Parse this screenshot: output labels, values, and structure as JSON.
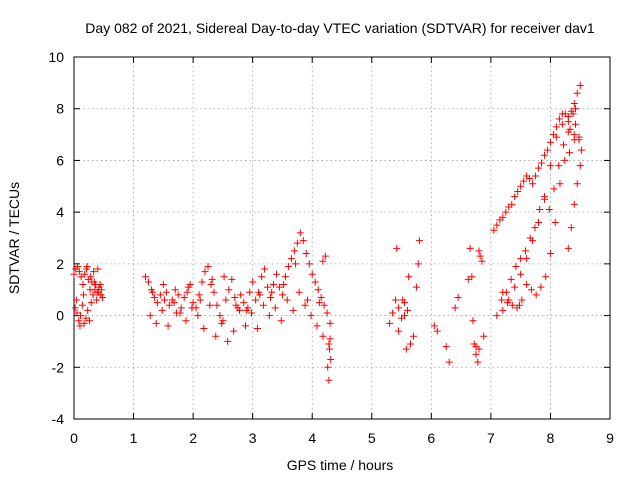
{
  "chart_data": {
    "type": "scatter",
    "title": "Day 082 of 2021, Sidereal Day-to-day VTEC variation (SDTVAR) for receiver dav1",
    "xlabel": "GPS time / hours",
    "ylabel": "SDTVAR / TECUs",
    "xlim": [
      0,
      9
    ],
    "ylim": [
      -4,
      10
    ],
    "xticks": [
      "0",
      "1",
      "2",
      "3",
      "4",
      "5",
      "6",
      "7",
      "8",
      "9"
    ],
    "yticks": [
      "-4",
      "-2",
      "0",
      "2",
      "4",
      "6",
      "8",
      "10"
    ],
    "grid": true,
    "marker": "+",
    "color": "#ff0000",
    "series": [
      {
        "name": "SDTVAR",
        "x": [
          0.0,
          0.03,
          0.06,
          0.09,
          0.12,
          0.15,
          0.18,
          0.21,
          0.24,
          0.27,
          0.3,
          0.33,
          0.36,
          0.39,
          0.42,
          0.45,
          0.48,
          0.02,
          0.05,
          0.08,
          0.11,
          0.14,
          0.17,
          0.2,
          0.23,
          0.26,
          0.29,
          0.32,
          0.35,
          0.38,
          0.41,
          0.44,
          0.04,
          0.1,
          0.16,
          0.22,
          0.28,
          0.34,
          0.4,
          0.46,
          1.2,
          1.25,
          1.3,
          1.35,
          1.4,
          1.45,
          1.5,
          1.55,
          1.6,
          1.65,
          1.7,
          1.75,
          1.8,
          1.85,
          1.9,
          1.95,
          2.0,
          2.05,
          2.1,
          2.15,
          2.2,
          2.25,
          2.3,
          2.35,
          2.4,
          2.45,
          2.5,
          2.55,
          2.6,
          2.65,
          2.7,
          2.75,
          2.8,
          2.85,
          2.9,
          2.95,
          3.0,
          3.05,
          3.1,
          3.15,
          3.2,
          3.25,
          3.3,
          3.35,
          3.4,
          3.45,
          3.5,
          3.55,
          3.6,
          3.65,
          3.7,
          3.75,
          3.8,
          3.85,
          3.9,
          3.95,
          4.0,
          4.05,
          4.1,
          4.15,
          4.2,
          4.25,
          4.3,
          1.28,
          1.38,
          1.48,
          1.58,
          1.68,
          1.78,
          1.88,
          1.98,
          2.08,
          2.18,
          2.28,
          2.38,
          2.48,
          2.58,
          2.68,
          2.78,
          2.88,
          2.98,
          3.08,
          3.18,
          3.28,
          3.38,
          3.48,
          3.58,
          3.68,
          3.78,
          3.88,
          3.98,
          4.08,
          4.18,
          4.28,
          1.32,
          1.52,
          1.72,
          1.92,
          2.12,
          2.32,
          2.52,
          2.72,
          2.92,
          3.12,
          3.32,
          3.52,
          3.72,
          3.92,
          4.12,
          4.29,
          4.3,
          4.31,
          4.26,
          4.22,
          4.18,
          4.28,
          5.3,
          5.35,
          5.4,
          5.45,
          5.5,
          5.55,
          5.6,
          5.65,
          5.7,
          5.75,
          5.8,
          5.42,
          5.52,
          5.58,
          5.62,
          5.78,
          5.45,
          5.55,
          6.05,
          6.1,
          6.25,
          6.3,
          6.4,
          6.45,
          6.62,
          6.65,
          6.68,
          6.72,
          6.75,
          6.78,
          6.8,
          6.82,
          6.85,
          6.7,
          6.8,
          6.88,
          6.75,
          7.05,
          7.1,
          7.15,
          7.2,
          7.25,
          7.3,
          7.35,
          7.4,
          7.45,
          7.5,
          7.55,
          7.6,
          7.65,
          7.7,
          7.75,
          7.8,
          7.85,
          7.9,
          7.95,
          8.0,
          8.05,
          8.1,
          8.15,
          8.2,
          8.25,
          8.3,
          8.35,
          8.4,
          8.45,
          8.5,
          7.2,
          7.28,
          7.36,
          7.44,
          7.52,
          7.6,
          7.68,
          7.76,
          7.84,
          7.92,
          8.0,
          8.08,
          8.16,
          8.24,
          8.32,
          8.4,
          7.18,
          7.26,
          7.34,
          7.42,
          7.5,
          7.58,
          7.66,
          7.74,
          7.82,
          7.9,
          7.98,
          8.06,
          8.14,
          8.22,
          8.3,
          7.1,
          7.2,
          7.3,
          7.4,
          7.5,
          7.6,
          7.7,
          7.8,
          7.9,
          8.0,
          8.1,
          8.2,
          8.3,
          8.4,
          8.48,
          8.3,
          8.35,
          8.4,
          8.45,
          8.5,
          8.52,
          8.48,
          8.42,
          8.38,
          8.33,
          7.48,
          8.42
        ],
        "y": [
          1.6,
          1.8,
          1.9,
          1.7,
          1.5,
          1.2,
          1.6,
          1.8,
          1.4,
          1.0,
          1.3,
          1.7,
          1.2,
          0.9,
          1.1,
          0.8,
          0.7,
          0.3,
          0.1,
          -0.2,
          0.0,
          0.4,
          -0.3,
          -0.1,
          0.2,
          -0.2,
          0.5,
          0.8,
          1.0,
          0.6,
          0.9,
          1.2,
          0.6,
          -0.4,
          0.8,
          1.9,
          1.5,
          1.3,
          1.8,
          1.0,
          1.5,
          1.3,
          1.0,
          0.7,
          0.5,
          0.8,
          1.2,
          0.9,
          0.4,
          0.6,
          1.0,
          0.8,
          0.3,
          0.7,
          0.9,
          1.2,
          0.5,
          0.3,
          0.8,
          1.3,
          1.7,
          1.9,
          1.2,
          0.9,
          0.4,
          0.0,
          -0.2,
          0.6,
          1.0,
          1.4,
          0.7,
          0.3,
          0.8,
          0.5,
          0.2,
          0.9,
          1.3,
          0.6,
          0.9,
          1.5,
          1.8,
          1.1,
          0.7,
          1.2,
          1.6,
          1.1,
          0.8,
          1.5,
          1.9,
          2.2,
          2.5,
          2.8,
          3.2,
          2.9,
          2.4,
          2.0,
          1.6,
          1.3,
          1.0,
          0.7,
          0.4,
          0.1,
          -0.3,
          0.0,
          -0.3,
          0.2,
          -0.4,
          0.5,
          0.1,
          -0.2,
          0.3,
          0.0,
          -0.5,
          0.4,
          -0.8,
          -0.3,
          -1.0,
          -0.6,
          0.2,
          -0.4,
          0.1,
          -0.5,
          0.4,
          0.0,
          0.3,
          -0.2,
          0.6,
          0.2,
          0.9,
          0.4,
          0.0,
          -0.4,
          -0.8,
          -1.1,
          0.9,
          0.6,
          0.1,
          1.1,
          0.6,
          1.4,
          1.5,
          0.4,
          0.3,
          0.8,
          0.9,
          1.2,
          2.0,
          0.6,
          0.5,
          -1.3,
          -0.9,
          -1.7,
          -2.0,
          2.3,
          2.1,
          -2.5,
          -0.3,
          0.1,
          0.6,
          0.3,
          -0.1,
          0.5,
          0.2,
          -1.1,
          -0.8,
          1.1,
          2.9,
          2.6,
          0.6,
          -1.3,
          1.5,
          2.0,
          -0.6,
          0.0,
          -0.4,
          -0.6,
          -1.2,
          -1.8,
          0.3,
          0.7,
          1.4,
          2.6,
          1.5,
          -1.1,
          -1.5,
          -1.8,
          2.5,
          2.3,
          2.1,
          -0.2,
          -1.3,
          -0.8,
          -1.2,
          3.3,
          3.5,
          3.7,
          3.8,
          4.0,
          4.2,
          4.3,
          4.6,
          4.8,
          5.0,
          5.2,
          5.4,
          5.3,
          5.1,
          5.4,
          5.7,
          5.9,
          6.2,
          6.4,
          6.7,
          7.0,
          7.3,
          7.6,
          7.8,
          7.8,
          7.7,
          7.9,
          8.2,
          8.6,
          8.9,
          0.9,
          0.5,
          0.4,
          0.3,
          0.6,
          1.2,
          1.0,
          0.8,
          1.1,
          1.5,
          2.4,
          3.6,
          5.1,
          6.0,
          6.3,
          6.8,
          0.6,
          0.9,
          1.4,
          1.9,
          2.2,
          2.5,
          3.0,
          3.4,
          4.1,
          4.6,
          4.1,
          4.9,
          5.8,
          6.6,
          7.1,
          0.0,
          0.2,
          0.6,
          1.1,
          1.6,
          2.2,
          2.9,
          3.6,
          4.5,
          5.8,
          6.9,
          7.4,
          7.5,
          7.0,
          6.8,
          2.6,
          3.4,
          4.3,
          5.1,
          5.8,
          6.4,
          6.9,
          7.4,
          7.8,
          7.2,
          0.4,
          8.0
        ]
      }
    ]
  }
}
